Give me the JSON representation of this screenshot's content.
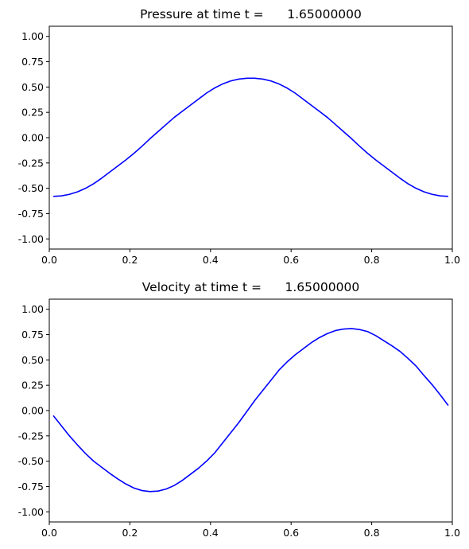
{
  "chart_data": [
    {
      "type": "line",
      "title": "Pressure at time t =      1.65000000",
      "xlabel": "",
      "ylabel": "",
      "xlim": [
        0,
        1
      ],
      "ylim": [
        -1.1,
        1.1
      ],
      "xticks": [
        "0.0",
        "0.2",
        "0.4",
        "0.6",
        "0.8",
        "1.0"
      ],
      "yticks": [
        "1.00",
        "0.75",
        "0.50",
        "0.25",
        "0.00",
        "-0.25",
        "-0.50",
        "-0.75",
        "-1.00"
      ],
      "grid": false,
      "color": "#0000ff",
      "x": [
        0.01,
        0.03,
        0.05,
        0.07,
        0.09,
        0.11,
        0.13,
        0.15,
        0.17,
        0.19,
        0.21,
        0.23,
        0.25,
        0.27,
        0.29,
        0.31,
        0.33,
        0.35,
        0.37,
        0.39,
        0.41,
        0.43,
        0.45,
        0.47,
        0.49,
        0.51,
        0.53,
        0.55,
        0.57,
        0.59,
        0.61,
        0.63,
        0.65,
        0.67,
        0.69,
        0.71,
        0.73,
        0.75,
        0.77,
        0.79,
        0.81,
        0.83,
        0.85,
        0.87,
        0.89,
        0.91,
        0.93,
        0.95,
        0.97,
        0.99
      ],
      "y": [
        -0.58,
        -0.575,
        -0.56,
        -0.535,
        -0.5,
        -0.455,
        -0.4,
        -0.34,
        -0.28,
        -0.22,
        -0.155,
        -0.085,
        -0.01,
        0.06,
        0.13,
        0.2,
        0.26,
        0.32,
        0.38,
        0.44,
        0.49,
        0.53,
        0.56,
        0.578,
        0.587,
        0.587,
        0.578,
        0.56,
        0.53,
        0.49,
        0.44,
        0.38,
        0.32,
        0.26,
        0.2,
        0.13,
        0.06,
        -0.01,
        -0.085,
        -0.155,
        -0.22,
        -0.28,
        -0.34,
        -0.4,
        -0.455,
        -0.5,
        -0.535,
        -0.56,
        -0.575,
        -0.58
      ]
    },
    {
      "type": "line",
      "title": "Velocity at time t =      1.65000000",
      "xlabel": "",
      "ylabel": "",
      "xlim": [
        0,
        1
      ],
      "ylim": [
        -1.1,
        1.1
      ],
      "xticks": [
        "0.0",
        "0.2",
        "0.4",
        "0.6",
        "0.8",
        "1.0"
      ],
      "yticks": [
        "1.00",
        "0.75",
        "0.50",
        "0.25",
        "0.00",
        "-0.25",
        "-0.50",
        "-0.75",
        "-1.00"
      ],
      "grid": false,
      "color": "#0000ff",
      "x": [
        0.01,
        0.03,
        0.05,
        0.07,
        0.09,
        0.11,
        0.13,
        0.15,
        0.17,
        0.19,
        0.21,
        0.23,
        0.25,
        0.27,
        0.29,
        0.31,
        0.33,
        0.35,
        0.37,
        0.39,
        0.41,
        0.43,
        0.45,
        0.47,
        0.49,
        0.51,
        0.53,
        0.55,
        0.57,
        0.59,
        0.61,
        0.63,
        0.65,
        0.67,
        0.69,
        0.71,
        0.73,
        0.75,
        0.77,
        0.79,
        0.81,
        0.83,
        0.85,
        0.87,
        0.89,
        0.91,
        0.93,
        0.95,
        0.97,
        0.99
      ],
      "y": [
        -0.05,
        -0.15,
        -0.25,
        -0.34,
        -0.425,
        -0.5,
        -0.56,
        -0.62,
        -0.675,
        -0.725,
        -0.765,
        -0.79,
        -0.8,
        -0.795,
        -0.775,
        -0.74,
        -0.69,
        -0.63,
        -0.57,
        -0.5,
        -0.42,
        -0.32,
        -0.22,
        -0.12,
        -0.01,
        0.1,
        0.2,
        0.3,
        0.4,
        0.48,
        0.55,
        0.61,
        0.67,
        0.72,
        0.76,
        0.79,
        0.805,
        0.81,
        0.8,
        0.78,
        0.74,
        0.69,
        0.64,
        0.585,
        0.515,
        0.44,
        0.345,
        0.255,
        0.155,
        0.05
      ]
    }
  ]
}
